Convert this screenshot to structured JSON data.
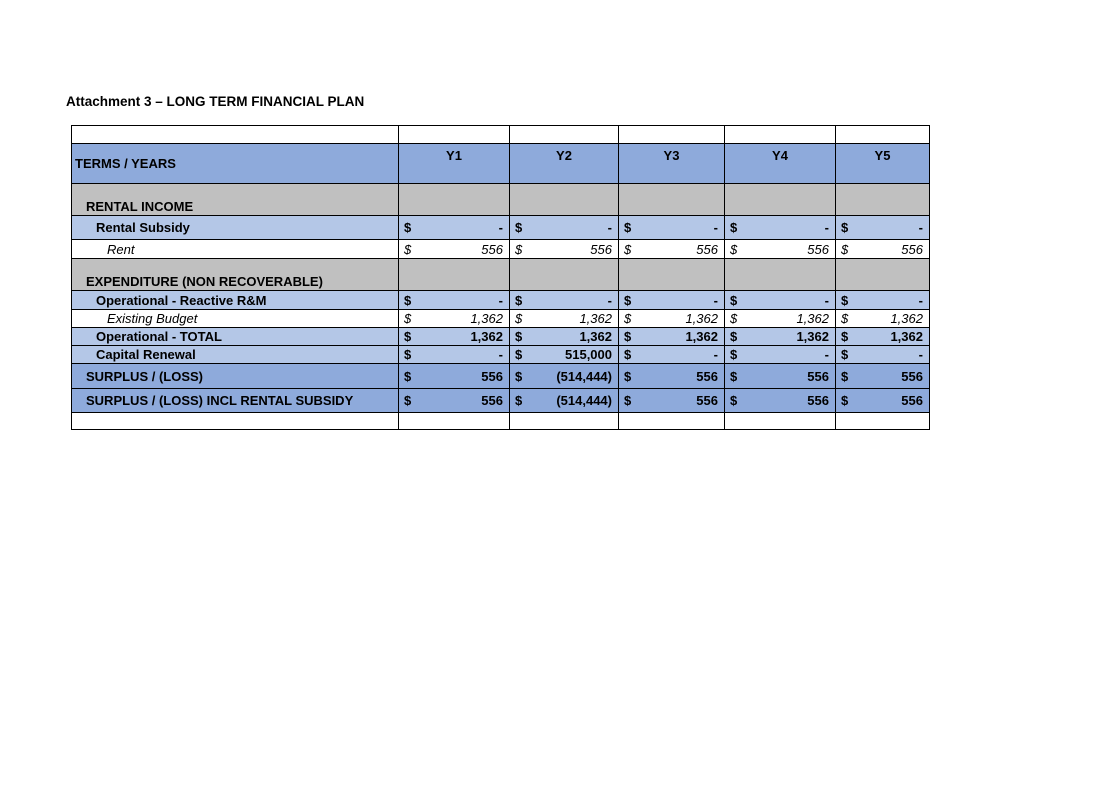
{
  "document": {
    "title": "Attachment 3 – LONG TERM FINANCIAL PLAN"
  },
  "table": {
    "header_label": "TERMS / YEARS",
    "years": [
      "Y1",
      "Y2",
      "Y3",
      "Y4",
      "Y5"
    ],
    "rows": [
      {
        "label": "RENTAL INCOME",
        "style": "grey"
      },
      {
        "label": "Rental Subsidy",
        "style": "lb",
        "sign": "$",
        "values": [
          "-",
          "-",
          "-",
          "-",
          "-"
        ]
      },
      {
        "label": "Rent",
        "style": "wh",
        "sign": "$",
        "values": [
          "556",
          "556",
          "556",
          "556",
          "556"
        ]
      },
      {
        "label": "EXPENDITURE (NON RECOVERABLE)",
        "style": "grey"
      },
      {
        "label": "Operational - Reactive R&M",
        "style": "lb",
        "sign": "$",
        "values": [
          "-",
          "-",
          "-",
          "-",
          "-"
        ]
      },
      {
        "label": "Existing Budget",
        "style": "wh",
        "sign": "$",
        "values": [
          "1,362",
          "1,362",
          "1,362",
          "1,362",
          "1,362"
        ]
      },
      {
        "label": "Operational - TOTAL",
        "style": "lb",
        "sign": "$",
        "values": [
          "1,362",
          "1,362",
          "1,362",
          "1,362",
          "1,362"
        ]
      },
      {
        "label": "Capital Renewal",
        "style": "lb",
        "sign": "$",
        "values": [
          "-",
          "515,000",
          "-",
          "-",
          "-"
        ]
      },
      {
        "label": "SURPLUS / (LOSS)",
        "style": "mb",
        "sign": "$",
        "values": [
          "556",
          "(514,444)",
          "556",
          "556",
          "556"
        ]
      },
      {
        "label": "SURPLUS / (LOSS) INCL RENTAL SUBSIDY",
        "style": "mb",
        "sign": "$",
        "values": [
          "556",
          "(514,444)",
          "556",
          "556",
          "556"
        ]
      }
    ]
  },
  "colors": {
    "header_blue": "#8eaadb",
    "light_blue": "#b4c7e7",
    "grey": "#c0c0c0"
  }
}
